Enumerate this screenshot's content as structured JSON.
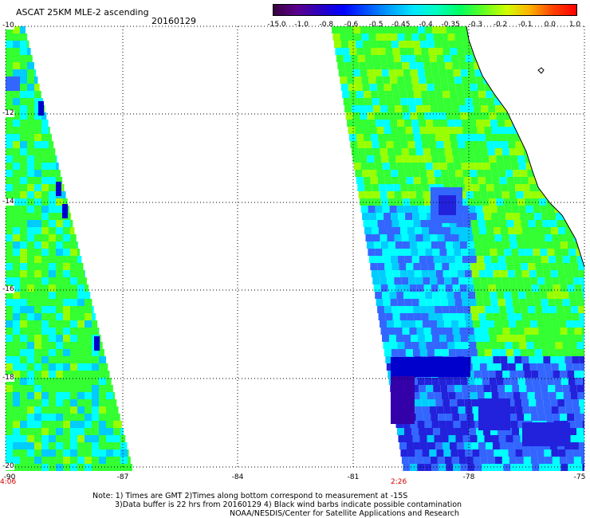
{
  "header": {
    "title": "ASCAT 25KM MLE-2 ascending",
    "date": "20160129"
  },
  "colorbar": {
    "labels": [
      "-15.0",
      "-1.0",
      "-0.8",
      "-0.6",
      "-0.5",
      "-0.45",
      "-0.4",
      "-0.35",
      "-0.3",
      "-0.2",
      "-0.1",
      "0.0",
      "1.0"
    ],
    "colors": [
      "#3a0040",
      "#5a008c",
      "#2a00c0",
      "#0000ff",
      "#0050ff",
      "#00a0ff",
      "#00e6ff",
      "#00ffc0",
      "#00ff60",
      "#60ff20",
      "#d0ff00",
      "#ffb000",
      "#ff4000",
      "#ff0000"
    ]
  },
  "axes": {
    "lat_labels": [
      "-10",
      "-12",
      "-14",
      "-16",
      "-18",
      "-20"
    ],
    "lon_labels": [
      "-90",
      "-87",
      "-84",
      "-81",
      "-78",
      "-75"
    ],
    "lat_range": [
      -20,
      -10
    ],
    "lon_range": [
      -90,
      -75
    ]
  },
  "times": {
    "west_swath": "4:06",
    "east_swath": "2:26"
  },
  "footer": {
    "line1": "Note: 1) Times are GMT 2)Times along bottom correspond to measurement at -15S",
    "line2": "3)Data buffer is 22 hrs from 20160129 4) Black wind barbs indicate possible contamination",
    "line3": "NOAA/NESDIS/Center for Satellite Applications and Research"
  },
  "map": {
    "colors": {
      "green": "#33ff33",
      "lime": "#99ff00",
      "cyan": "#00ffff",
      "lightblue": "#00ccff",
      "blue": "#3366ff",
      "darkblue": "#2222dd",
      "navy": "#0000cc",
      "purple": "#3300aa",
      "coast": "#000000",
      "grid": "#000000"
    }
  }
}
